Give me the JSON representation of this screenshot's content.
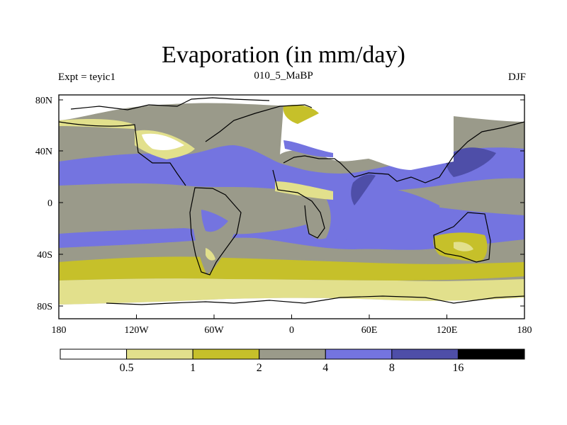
{
  "title": "Evaporation (in mm/day)",
  "subtitle_left": "Expt = teyic1",
  "subtitle_center": "010_5_MaBP",
  "subtitle_right": "DJF",
  "x_ticks": [
    "180",
    "120W",
    "60W",
    "0",
    "60E",
    "120E",
    "180"
  ],
  "y_ticks": [
    "80N",
    "40N",
    "0",
    "40S",
    "80S"
  ],
  "colorbar": {
    "levels": [
      "0.5",
      "1",
      "2",
      "4",
      "8",
      "16"
    ],
    "colors": [
      "#ffffff",
      "#e2e08c",
      "#c6c02a",
      "#9a9a8a",
      "#7474e0",
      "#4e4ea8",
      "#000000"
    ]
  },
  "colors": {
    "land_outline": "#000000",
    "map_frame": "#000000"
  }
}
